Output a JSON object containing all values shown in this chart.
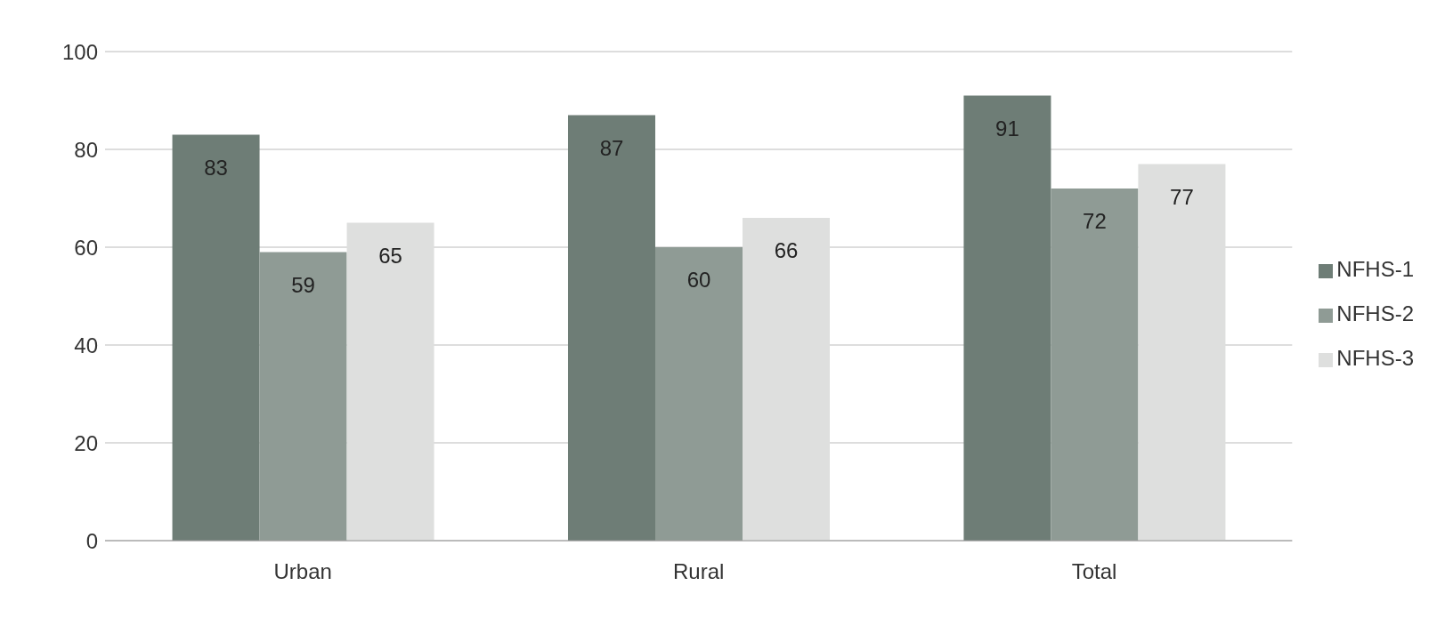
{
  "chart_data": {
    "type": "bar",
    "categories": [
      "Urban",
      "Rural",
      "Total"
    ],
    "series": [
      {
        "name": "NFHS-1",
        "color": "#6e7d76",
        "values": [
          83,
          87,
          91
        ]
      },
      {
        "name": "NFHS-2",
        "color": "#8f9b95",
        "values": [
          59,
          60,
          72
        ]
      },
      {
        "name": "NFHS-3",
        "color": "#dedfde",
        "values": [
          65,
          66,
          77
        ]
      }
    ],
    "ylim": [
      0,
      100
    ],
    "yticks": [
      0,
      20,
      40,
      60,
      80,
      100
    ],
    "grid": "y",
    "legend": "right",
    "data_labels": true
  }
}
